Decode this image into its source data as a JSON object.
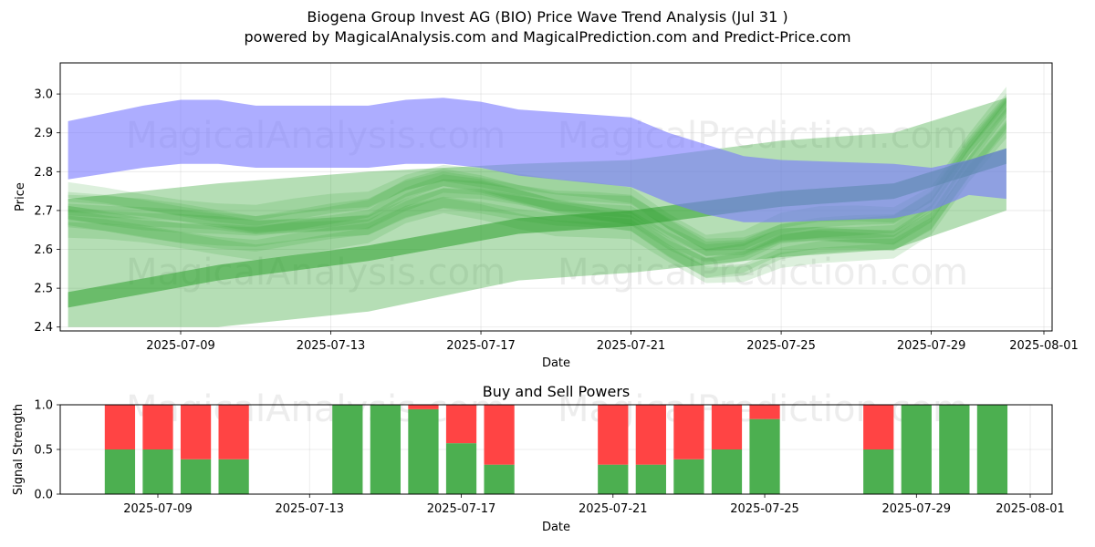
{
  "header": {
    "title": "Biogena Group Invest AG (BIO) Price Wave Trend Analysis (Jul 31 )",
    "subtitle": "powered by MagicalAnalysis.com and MagicalPrediction.com and Predict-Price.com"
  },
  "watermarks": [
    "MagicalAnalysis.com",
    "MagicalPrediction.com"
  ],
  "chart_data": [
    {
      "type": "area",
      "xlabel": "Date",
      "ylabel": "Price",
      "xlim": [
        "2025-07-05",
        "2025-08-01"
      ],
      "ylim": [
        2.39,
        3.08
      ],
      "x_ticks": [
        "2025-07-09",
        "2025-07-13",
        "2025-07-17",
        "2025-07-21",
        "2025-07-25",
        "2025-07-29",
        "2025-08-01"
      ],
      "y_ticks": [
        2.4,
        2.5,
        2.6,
        2.7,
        2.8,
        2.9,
        3.0
      ],
      "grid": true,
      "colors": {
        "blue_band": "#7777ff",
        "green_band": "#2ca02c"
      },
      "blue_band": {
        "x": [
          "2025-07-06",
          "2025-07-08",
          "2025-07-09",
          "2025-07-10",
          "2025-07-11",
          "2025-07-12",
          "2025-07-13",
          "2025-07-14",
          "2025-07-15",
          "2025-07-16",
          "2025-07-17",
          "2025-07-18",
          "2025-07-21",
          "2025-07-22",
          "2025-07-23",
          "2025-07-24",
          "2025-07-25",
          "2025-07-28",
          "2025-07-29",
          "2025-07-30",
          "2025-07-31"
        ],
        "upper": [
          2.93,
          2.97,
          2.985,
          2.985,
          2.97,
          2.97,
          2.97,
          2.97,
          2.985,
          2.99,
          2.98,
          2.96,
          2.94,
          2.9,
          2.87,
          2.84,
          2.83,
          2.82,
          2.81,
          2.83,
          2.86
        ],
        "lower": [
          2.78,
          2.81,
          2.82,
          2.82,
          2.81,
          2.81,
          2.81,
          2.81,
          2.82,
          2.82,
          2.81,
          2.79,
          2.76,
          2.72,
          2.69,
          2.67,
          2.67,
          2.68,
          2.7,
          2.74,
          2.73
        ]
      },
      "green_trend_bands": [
        {
          "x": [
            "2025-07-06",
            "2025-07-10",
            "2025-07-14",
            "2025-07-18",
            "2025-07-21",
            "2025-07-25",
            "2025-07-28",
            "2025-07-31"
          ],
          "upper": [
            2.73,
            2.77,
            2.8,
            2.82,
            2.83,
            2.88,
            2.9,
            2.99
          ],
          "lower": [
            2.4,
            2.4,
            2.44,
            2.52,
            2.54,
            2.58,
            2.6,
            2.7
          ]
        },
        {
          "x": [
            "2025-07-06",
            "2025-07-10",
            "2025-07-14",
            "2025-07-18",
            "2025-07-21",
            "2025-07-25",
            "2025-07-28",
            "2025-07-31"
          ],
          "upper": [
            2.49,
            2.56,
            2.61,
            2.68,
            2.7,
            2.75,
            2.77,
            2.86
          ],
          "lower": [
            2.45,
            2.52,
            2.57,
            2.64,
            2.66,
            2.71,
            2.73,
            2.82
          ]
        }
      ],
      "green_wave_center": {
        "x": [
          "2025-07-06",
          "2025-07-07",
          "2025-07-08",
          "2025-07-09",
          "2025-07-10",
          "2025-07-11",
          "2025-07-12",
          "2025-07-13",
          "2025-07-14",
          "2025-07-15",
          "2025-07-16",
          "2025-07-17",
          "2025-07-18",
          "2025-07-19",
          "2025-07-20",
          "2025-07-21",
          "2025-07-22",
          "2025-07-23",
          "2025-07-24",
          "2025-07-25",
          "2025-07-26",
          "2025-07-27",
          "2025-07-28",
          "2025-07-29",
          "2025-07-30",
          "2025-07-31"
        ],
        "y": [
          2.7,
          2.69,
          2.68,
          2.67,
          2.66,
          2.65,
          2.66,
          2.67,
          2.68,
          2.73,
          2.76,
          2.75,
          2.73,
          2.71,
          2.7,
          2.69,
          2.63,
          2.58,
          2.59,
          2.63,
          2.64,
          2.64,
          2.64,
          2.7,
          2.84,
          2.96
        ]
      }
    },
    {
      "type": "bar",
      "title": "Buy and Sell Powers",
      "xlabel": "Date",
      "ylabel": "Signal Strength",
      "ylim": [
        0.0,
        1.0
      ],
      "y_ticks": [
        0.0,
        0.5,
        1.0
      ],
      "x_ticks": [
        "2025-07-09",
        "2025-07-13",
        "2025-07-17",
        "2025-07-21",
        "2025-07-25",
        "2025-07-29",
        "2025-08-01"
      ],
      "colors": {
        "buy": "#4caf50",
        "sell": "#ff4444"
      },
      "dates": [
        "2025-07-08",
        "2025-07-09",
        "2025-07-10",
        "2025-07-11",
        "2025-07-14",
        "2025-07-15",
        "2025-07-16",
        "2025-07-17",
        "2025-07-18",
        "2025-07-21",
        "2025-07-22",
        "2025-07-23",
        "2025-07-24",
        "2025-07-25",
        "2025-07-28",
        "2025-07-29",
        "2025-07-30",
        "2025-07-31"
      ],
      "buy": [
        0.5,
        0.5,
        0.39,
        0.39,
        1.0,
        1.0,
        0.95,
        0.57,
        0.33,
        0.33,
        0.33,
        0.39,
        0.5,
        0.84,
        0.5,
        1.0,
        1.0,
        1.0
      ],
      "sell": [
        0.5,
        0.5,
        0.61,
        0.61,
        0.0,
        0.0,
        0.05,
        0.43,
        0.67,
        0.67,
        0.67,
        0.61,
        0.5,
        0.16,
        0.5,
        0.0,
        0.0,
        0.0
      ]
    }
  ]
}
